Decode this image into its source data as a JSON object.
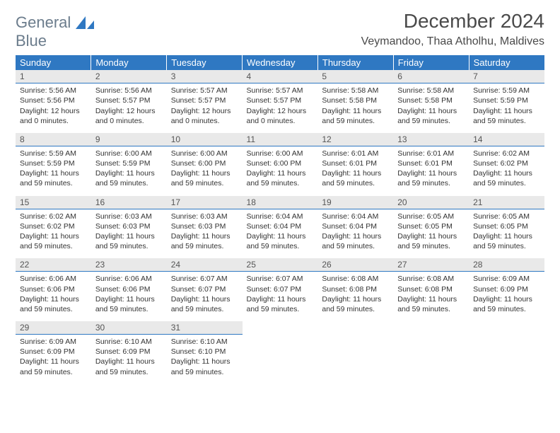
{
  "brand": {
    "word1": "General",
    "word2": "Blue"
  },
  "title": "December 2024",
  "location": "Veymandoo, Thaa Atholhu, Maldives",
  "weekdays": [
    "Sunday",
    "Monday",
    "Tuesday",
    "Wednesday",
    "Thursday",
    "Friday",
    "Saturday"
  ],
  "colors": {
    "header_bg": "#2f78c2",
    "header_text": "#ffffff",
    "daynum_bg": "#e9e9e9",
    "daynum_border": "#2f78c2",
    "body_text": "#333333",
    "logo_gray": "#6b7c8c",
    "logo_blue": "#2f78c2",
    "page_bg": "#ffffff"
  },
  "typography": {
    "title_fontsize": 28,
    "location_fontsize": 16,
    "weekday_fontsize": 13,
    "daynum_fontsize": 12,
    "body_fontsize": 10.5,
    "logo_fontsize": 22
  },
  "labels": {
    "sunrise": "Sunrise:",
    "sunset": "Sunset:",
    "daylight": "Daylight:"
  },
  "weeks": [
    [
      {
        "day": "1",
        "sunrise": "5:56 AM",
        "sunset": "5:56 PM",
        "daylight": "12 hours and 0 minutes."
      },
      {
        "day": "2",
        "sunrise": "5:56 AM",
        "sunset": "5:57 PM",
        "daylight": "12 hours and 0 minutes."
      },
      {
        "day": "3",
        "sunrise": "5:57 AM",
        "sunset": "5:57 PM",
        "daylight": "12 hours and 0 minutes."
      },
      {
        "day": "4",
        "sunrise": "5:57 AM",
        "sunset": "5:57 PM",
        "daylight": "12 hours and 0 minutes."
      },
      {
        "day": "5",
        "sunrise": "5:58 AM",
        "sunset": "5:58 PM",
        "daylight": "11 hours and 59 minutes."
      },
      {
        "day": "6",
        "sunrise": "5:58 AM",
        "sunset": "5:58 PM",
        "daylight": "11 hours and 59 minutes."
      },
      {
        "day": "7",
        "sunrise": "5:59 AM",
        "sunset": "5:59 PM",
        "daylight": "11 hours and 59 minutes."
      }
    ],
    [
      {
        "day": "8",
        "sunrise": "5:59 AM",
        "sunset": "5:59 PM",
        "daylight": "11 hours and 59 minutes."
      },
      {
        "day": "9",
        "sunrise": "6:00 AM",
        "sunset": "5:59 PM",
        "daylight": "11 hours and 59 minutes."
      },
      {
        "day": "10",
        "sunrise": "6:00 AM",
        "sunset": "6:00 PM",
        "daylight": "11 hours and 59 minutes."
      },
      {
        "day": "11",
        "sunrise": "6:00 AM",
        "sunset": "6:00 PM",
        "daylight": "11 hours and 59 minutes."
      },
      {
        "day": "12",
        "sunrise": "6:01 AM",
        "sunset": "6:01 PM",
        "daylight": "11 hours and 59 minutes."
      },
      {
        "day": "13",
        "sunrise": "6:01 AM",
        "sunset": "6:01 PM",
        "daylight": "11 hours and 59 minutes."
      },
      {
        "day": "14",
        "sunrise": "6:02 AM",
        "sunset": "6:02 PM",
        "daylight": "11 hours and 59 minutes."
      }
    ],
    [
      {
        "day": "15",
        "sunrise": "6:02 AM",
        "sunset": "6:02 PM",
        "daylight": "11 hours and 59 minutes."
      },
      {
        "day": "16",
        "sunrise": "6:03 AM",
        "sunset": "6:03 PM",
        "daylight": "11 hours and 59 minutes."
      },
      {
        "day": "17",
        "sunrise": "6:03 AM",
        "sunset": "6:03 PM",
        "daylight": "11 hours and 59 minutes."
      },
      {
        "day": "18",
        "sunrise": "6:04 AM",
        "sunset": "6:04 PM",
        "daylight": "11 hours and 59 minutes."
      },
      {
        "day": "19",
        "sunrise": "6:04 AM",
        "sunset": "6:04 PM",
        "daylight": "11 hours and 59 minutes."
      },
      {
        "day": "20",
        "sunrise": "6:05 AM",
        "sunset": "6:05 PM",
        "daylight": "11 hours and 59 minutes."
      },
      {
        "day": "21",
        "sunrise": "6:05 AM",
        "sunset": "6:05 PM",
        "daylight": "11 hours and 59 minutes."
      }
    ],
    [
      {
        "day": "22",
        "sunrise": "6:06 AM",
        "sunset": "6:06 PM",
        "daylight": "11 hours and 59 minutes."
      },
      {
        "day": "23",
        "sunrise": "6:06 AM",
        "sunset": "6:06 PM",
        "daylight": "11 hours and 59 minutes."
      },
      {
        "day": "24",
        "sunrise": "6:07 AM",
        "sunset": "6:07 PM",
        "daylight": "11 hours and 59 minutes."
      },
      {
        "day": "25",
        "sunrise": "6:07 AM",
        "sunset": "6:07 PM",
        "daylight": "11 hours and 59 minutes."
      },
      {
        "day": "26",
        "sunrise": "6:08 AM",
        "sunset": "6:08 PM",
        "daylight": "11 hours and 59 minutes."
      },
      {
        "day": "27",
        "sunrise": "6:08 AM",
        "sunset": "6:08 PM",
        "daylight": "11 hours and 59 minutes."
      },
      {
        "day": "28",
        "sunrise": "6:09 AM",
        "sunset": "6:09 PM",
        "daylight": "11 hours and 59 minutes."
      }
    ],
    [
      {
        "day": "29",
        "sunrise": "6:09 AM",
        "sunset": "6:09 PM",
        "daylight": "11 hours and 59 minutes."
      },
      {
        "day": "30",
        "sunrise": "6:10 AM",
        "sunset": "6:09 PM",
        "daylight": "11 hours and 59 minutes."
      },
      {
        "day": "31",
        "sunrise": "6:10 AM",
        "sunset": "6:10 PM",
        "daylight": "11 hours and 59 minutes."
      },
      null,
      null,
      null,
      null
    ]
  ]
}
